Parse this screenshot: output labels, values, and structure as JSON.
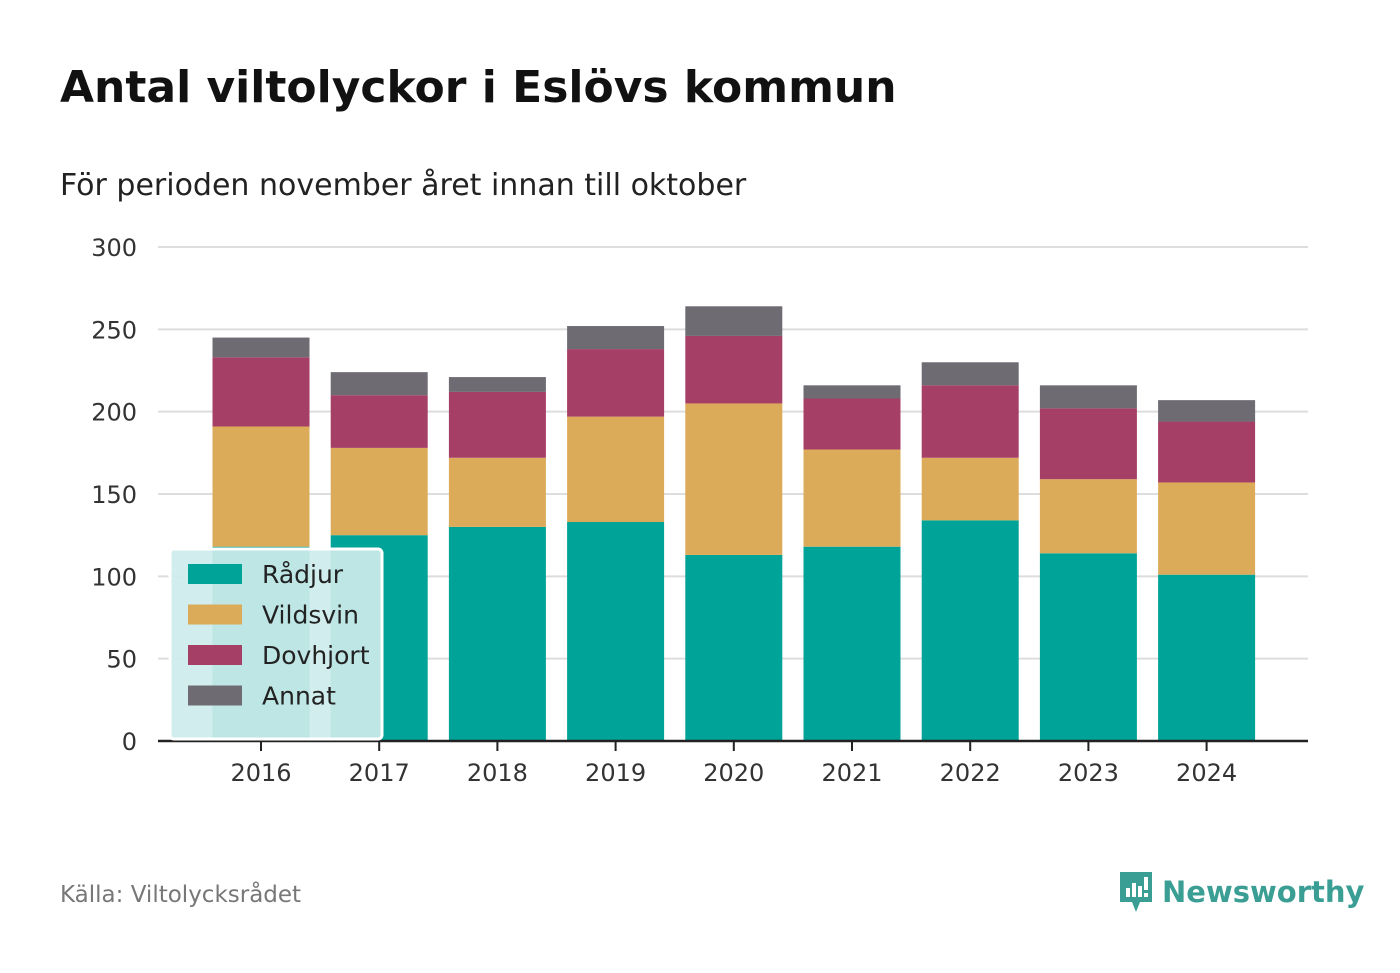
{
  "title": "Antal viltolyckor i Eslövs kommun",
  "subtitle": "För perioden november året innan till oktober",
  "source": "Källa: Viltolycksrådet",
  "brand": "Newsworthy",
  "colors": {
    "radjur": "#00a398",
    "vildsvin": "#dcab5a",
    "dovhjort": "#a63f66",
    "annat": "#6e6c72",
    "grid": "#dddddd",
    "axis": "#222222",
    "legend_bg": "#cdeceb",
    "brand": "#3a9e94"
  },
  "chart_data": {
    "type": "bar",
    "stacked": true,
    "categories": [
      "2016",
      "2017",
      "2018",
      "2019",
      "2020",
      "2021",
      "2022",
      "2023",
      "2024"
    ],
    "series": [
      {
        "name": "Rådjur",
        "color": "#00a398",
        "values": [
          118,
          125,
          130,
          133,
          113,
          118,
          134,
          114,
          101
        ]
      },
      {
        "name": "Vildsvin",
        "color": "#dcab5a",
        "values": [
          73,
          53,
          42,
          64,
          92,
          59,
          38,
          45,
          56
        ]
      },
      {
        "name": "Dovhjort",
        "color": "#a63f66",
        "values": [
          42,
          32,
          40,
          41,
          41,
          31,
          44,
          43,
          37
        ]
      },
      {
        "name": "Annat",
        "color": "#6e6c72",
        "values": [
          12,
          14,
          9,
          14,
          18,
          8,
          14,
          14,
          13
        ]
      }
    ],
    "ylim": [
      0,
      300
    ],
    "yticks": [
      "0",
      "50",
      "100",
      "150",
      "200",
      "250",
      "300"
    ],
    "grid": true,
    "legend": "bottom-left",
    "xlabel": "",
    "ylabel": ""
  }
}
